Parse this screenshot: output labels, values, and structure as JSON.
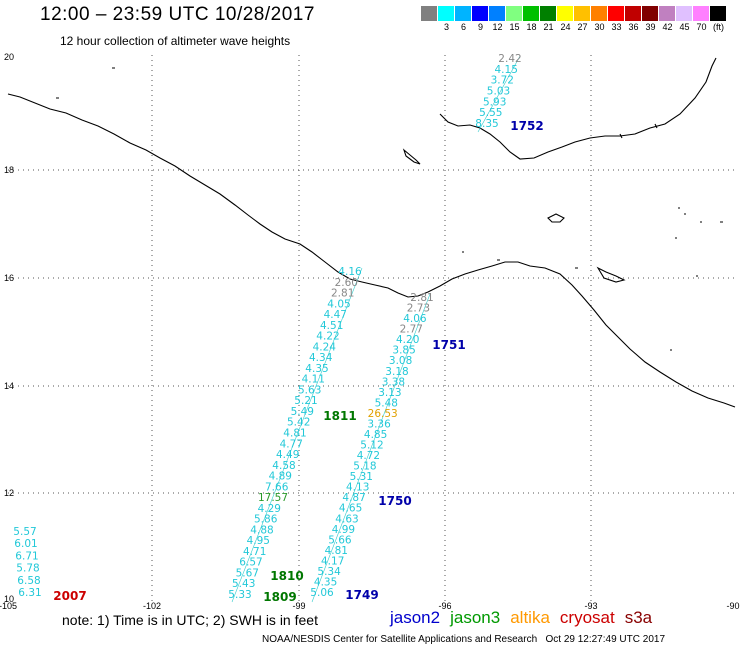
{
  "title": "12:00 – 23:59 UTC 10/28/2017",
  "subtitle": "12 hour collection of altimeter wave heights",
  "colorbar": {
    "colors": [
      "#808080",
      "#00ffff",
      "#00b4ff",
      "#0000ff",
      "#0080ff",
      "#80ff80",
      "#00c000",
      "#008000",
      "#ffff00",
      "#ffc000",
      "#ff8000",
      "#ff0000",
      "#c00000",
      "#800000",
      "#c080c0",
      "#e0c0ff",
      "#ff80ff",
      "#000000"
    ],
    "labels": [
      "",
      "3",
      "6",
      "9",
      "12",
      "15",
      "18",
      "21",
      "24",
      "27",
      "30",
      "33",
      "36",
      "39",
      "42",
      "45",
      "70",
      "(ft)"
    ]
  },
  "axes": {
    "lon_ticks": [
      "-105",
      "-102",
      "-99",
      "-96",
      "-93",
      "-90"
    ],
    "lat_ticks": [
      "20",
      "18",
      "16",
      "14",
      "12",
      "10"
    ]
  },
  "tracks": [
    {
      "color": "#33cccc",
      "points": [
        {
          "v": "2.42",
          "c": "#888888"
        },
        {
          "v": "4.15"
        },
        {
          "v": "3.72"
        },
        {
          "v": "5.03"
        },
        {
          "v": "5.93"
        },
        {
          "v": "5.55"
        },
        {
          "v": "8.35"
        }
      ]
    },
    {
      "color": "#33cccc",
      "points": [
        {
          "v": "4.16"
        },
        {
          "v": "2.60",
          "c": "#888888"
        },
        {
          "v": "2.81",
          "c": "#888888"
        },
        {
          "v": "4.05"
        },
        {
          "v": "4.47"
        },
        {
          "v": "4.51"
        },
        {
          "v": "4.22"
        },
        {
          "v": "4.24"
        },
        {
          "v": "4.34"
        },
        {
          "v": "4.35"
        },
        {
          "v": "4.11"
        },
        {
          "v": "5.63"
        },
        {
          "v": "5.21"
        },
        {
          "v": "5.49"
        },
        {
          "v": "5.42"
        },
        {
          "v": "4.81"
        },
        {
          "v": "4.77"
        },
        {
          "v": "4.49"
        },
        {
          "v": "4.58"
        },
        {
          "v": "4.89"
        },
        {
          "v": "7.66"
        },
        {
          "v": "17.57",
          "c": "#2a9a2a"
        },
        {
          "v": "4.29"
        },
        {
          "v": "5.86"
        },
        {
          "v": "4.88"
        },
        {
          "v": "4.95"
        },
        {
          "v": "4.71"
        },
        {
          "v": "6.57"
        },
        {
          "v": "5.67"
        },
        {
          "v": "5.43"
        },
        {
          "v": "5.33"
        }
      ]
    },
    {
      "color": "#33cccc",
      "points": [
        {
          "v": "2.81",
          "c": "#888888"
        },
        {
          "v": "2.73",
          "c": "#888888"
        },
        {
          "v": "4.06"
        },
        {
          "v": "2.77",
          "c": "#888888"
        },
        {
          "v": "4.20"
        },
        {
          "v": "3.85"
        },
        {
          "v": "3.08"
        },
        {
          "v": "3.18"
        },
        {
          "v": "3.38"
        },
        {
          "v": "3.13"
        },
        {
          "v": "5.48"
        },
        {
          "v": "26.53",
          "c": "#e0a000"
        },
        {
          "v": "3.36"
        },
        {
          "v": "4.85"
        },
        {
          "v": "5.12"
        },
        {
          "v": "4.72"
        },
        {
          "v": "5.18"
        },
        {
          "v": "5.31"
        },
        {
          "v": "4.13"
        },
        {
          "v": "4.87"
        },
        {
          "v": "4.65"
        },
        {
          "v": "4.63"
        },
        {
          "v": "4.99"
        },
        {
          "v": "5.66"
        },
        {
          "v": "4.81"
        },
        {
          "v": "4.17"
        },
        {
          "v": "5.34"
        },
        {
          "v": "4.35"
        },
        {
          "v": "5.06"
        }
      ]
    },
    {
      "color": "#33cccc",
      "points": [
        {
          "v": "5.57"
        },
        {
          "v": "6.01"
        },
        {
          "v": "6.71"
        },
        {
          "v": "5.78"
        },
        {
          "v": "6.58"
        },
        {
          "v": "6.31"
        }
      ]
    }
  ],
  "time_labels": [
    {
      "text": "1752",
      "color": "#0000aa"
    },
    {
      "text": "1751",
      "color": "#0000aa"
    },
    {
      "text": "1811",
      "color": "#007700"
    },
    {
      "text": "1750",
      "color": "#0000aa"
    },
    {
      "text": "1810",
      "color": "#007700"
    },
    {
      "text": "1809",
      "color": "#007700"
    },
    {
      "text": "1749",
      "color": "#0000aa"
    },
    {
      "text": "2007",
      "color": "#cc0000"
    }
  ],
  "note": "note: 1) Time is in UTC; 2) SWH is in feet",
  "legend": [
    {
      "name": "jason2",
      "color": "#0000cc"
    },
    {
      "name": "jason3",
      "color": "#009900"
    },
    {
      "name": "altika",
      "color": "#ff9900"
    },
    {
      "name": "cryosat",
      "color": "#cc0000"
    },
    {
      "name": "s3a",
      "color": "#880000"
    }
  ],
  "credit": "NOAA/NESDIS Center for Satellite Applications and Research",
  "timestamp": "Oct 29 12:27:49 UTC 2017"
}
